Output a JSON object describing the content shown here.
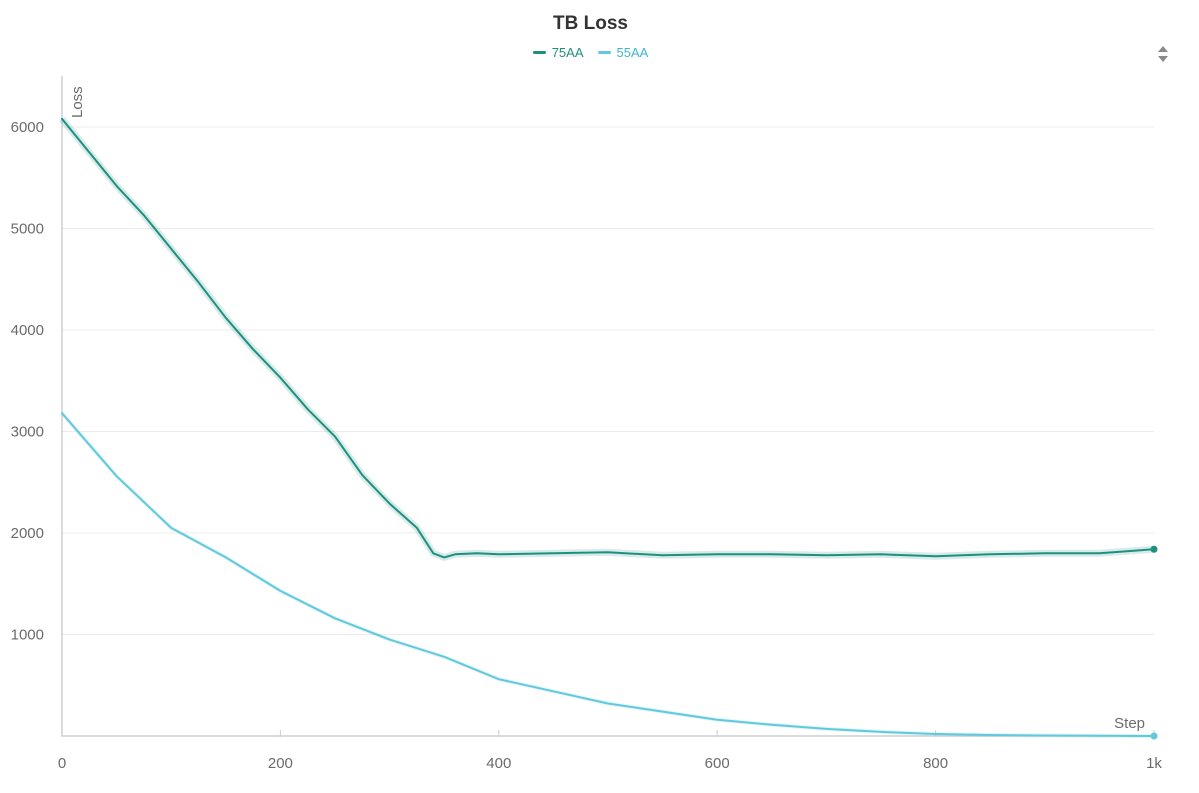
{
  "colors": {
    "series_75AA": "#1f8f82",
    "series_55AA": "#62c9dd",
    "grid": "#ececec",
    "axis": "#cfcfcf"
  },
  "icons": {
    "sort": "sort-arrows-icon"
  },
  "chart_data": {
    "type": "line",
    "title": "TB Loss",
    "xlabel": "Step",
    "ylabel": "Loss",
    "xlim": [
      0,
      1000
    ],
    "ylim": [
      0,
      6500
    ],
    "xticks": [
      0,
      200,
      400,
      600,
      800,
      1000
    ],
    "xtick_labels": [
      "0",
      "200",
      "400",
      "600",
      "800",
      "1k"
    ],
    "yticks": [
      1000,
      2000,
      3000,
      4000,
      5000,
      6000
    ],
    "ytick_labels": [
      "1000",
      "2000",
      "3000",
      "4000",
      "5000",
      "6000"
    ],
    "grid": true,
    "legend_position": "top-center",
    "series": [
      {
        "name": "75AA",
        "color": "#1f8f82",
        "x": [
          0,
          25,
          50,
          75,
          100,
          125,
          150,
          175,
          200,
          225,
          250,
          275,
          300,
          325,
          340,
          350,
          360,
          380,
          400,
          450,
          500,
          550,
          600,
          650,
          700,
          750,
          800,
          850,
          900,
          950,
          1000
        ],
        "y": [
          6080,
          5750,
          5420,
          5130,
          4800,
          4470,
          4120,
          3810,
          3530,
          3220,
          2950,
          2570,
          2290,
          2050,
          1800,
          1760,
          1790,
          1800,
          1790,
          1800,
          1810,
          1780,
          1790,
          1790,
          1780,
          1790,
          1770,
          1790,
          1800,
          1800,
          1840
        ]
      },
      {
        "name": "55AA",
        "color": "#62c9dd",
        "x": [
          0,
          50,
          100,
          150,
          200,
          250,
          300,
          350,
          400,
          450,
          500,
          550,
          600,
          650,
          700,
          750,
          800,
          850,
          900,
          950,
          1000
        ],
        "y": [
          3180,
          2560,
          2050,
          1760,
          1430,
          1160,
          950,
          780,
          560,
          440,
          320,
          240,
          160,
          110,
          70,
          40,
          20,
          10,
          5,
          2,
          0
        ]
      }
    ]
  }
}
